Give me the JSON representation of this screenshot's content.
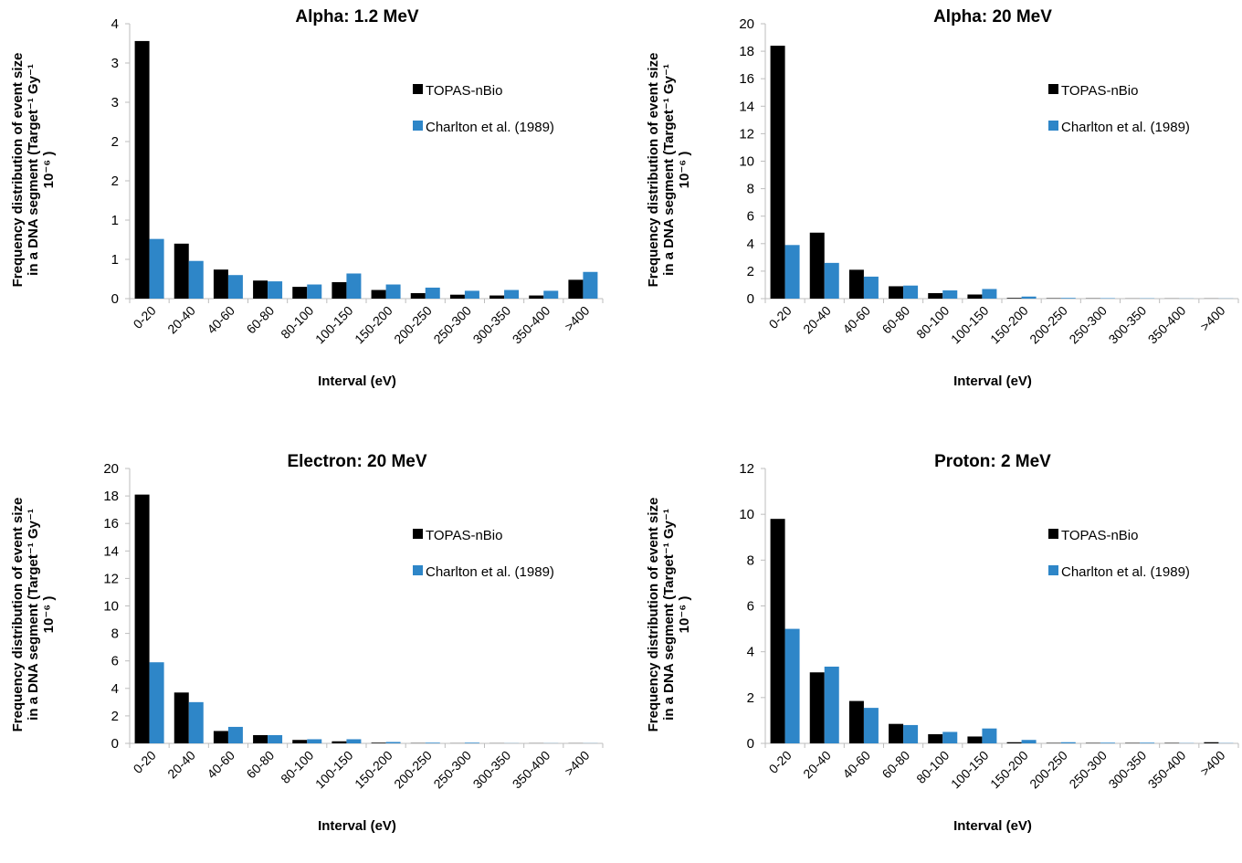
{
  "colors": {
    "topas": "#000000",
    "charlton": "#2e86c8",
    "axis": "#bdbdbd"
  },
  "ylabel_lines": [
    "Frequency distribution of event size",
    "in a DNA segment (Target⁻¹ Gy⁻¹",
    "10⁻⁶ )"
  ],
  "chart_data": [
    {
      "type": "bar",
      "title": "Alpha: 1.2 MeV",
      "xlabel": "Interval (eV)",
      "ylabel": "Frequency distribution of event size in a DNA segment (Target⁻¹ Gy⁻¹ 10⁻⁶ )",
      "categories": [
        "0-20",
        "20-40",
        "40-60",
        "60-80",
        "80-100",
        "100-150",
        "150-200",
        "200-250",
        "250-300",
        "300-350",
        "350-400",
        ">400"
      ],
      "ylim": [
        0,
        3.5
      ],
      "yticks": [
        0,
        0.5,
        1,
        1.5,
        2,
        2.5,
        3,
        3.5
      ],
      "ytick_labels": [
        "0",
        "1",
        "1",
        "2",
        "2",
        "3",
        "3",
        "4"
      ],
      "legend": "right",
      "series": [
        {
          "name": "TOPAS-nBio",
          "values": [
            3.28,
            0.7,
            0.37,
            0.23,
            0.15,
            0.21,
            0.11,
            0.07,
            0.05,
            0.04,
            0.04,
            0.24
          ]
        },
        {
          "name": "Charlton et al. (1989)",
          "values": [
            0.76,
            0.48,
            0.3,
            0.22,
            0.18,
            0.32,
            0.18,
            0.14,
            0.1,
            0.11,
            0.1,
            0.34
          ]
        }
      ]
    },
    {
      "type": "bar",
      "title": "Alpha: 20 MeV",
      "xlabel": "Interval (eV)",
      "ylabel": "Frequency distribution of event size in a DNA segment (Target⁻¹ Gy⁻¹ 10⁻⁶ )",
      "categories": [
        "0-20",
        "20-40",
        "40-60",
        "60-80",
        "80-100",
        "100-150",
        "150-200",
        "200-250",
        "250-300",
        "300-350",
        "350-400",
        ">400"
      ],
      "ylim": [
        0,
        20
      ],
      "yticks": [
        0,
        2,
        4,
        6,
        8,
        10,
        12,
        14,
        16,
        18,
        20
      ],
      "ytick_labels": [
        "0",
        "2",
        "4",
        "6",
        "8",
        "10",
        "12",
        "14",
        "16",
        "18",
        "20"
      ],
      "legend": "right",
      "series": [
        {
          "name": "TOPAS-nBio",
          "values": [
            18.4,
            4.8,
            2.1,
            0.9,
            0.4,
            0.3,
            0.05,
            0.03,
            0.02,
            0.01,
            0.01,
            0.01
          ]
        },
        {
          "name": "Charlton et al. (1989)",
          "values": [
            3.9,
            2.6,
            1.6,
            0.95,
            0.6,
            0.7,
            0.15,
            0.05,
            0.03,
            0.02,
            0.01,
            0.01
          ]
        }
      ]
    },
    {
      "type": "bar",
      "title": "Electron: 20 MeV",
      "xlabel": "Interval (eV)",
      "ylabel": "Frequency distribution of event size in a DNA segment (Target⁻¹ Gy⁻¹ 10⁻⁶ )",
      "categories": [
        "0-20",
        "20-40",
        "40-60",
        "60-80",
        "80-100",
        "100-150",
        "150-200",
        "200-250",
        "250-300",
        "300-350",
        "350-400",
        ">400"
      ],
      "ylim": [
        0,
        20
      ],
      "yticks": [
        0,
        2,
        4,
        6,
        8,
        10,
        12,
        14,
        16,
        18,
        20
      ],
      "ytick_labels": [
        "0",
        "2",
        "4",
        "6",
        "8",
        "10",
        "12",
        "14",
        "16",
        "18",
        "20"
      ],
      "legend": "right",
      "series": [
        {
          "name": "TOPAS-nBio",
          "values": [
            18.1,
            3.7,
            0.9,
            0.6,
            0.25,
            0.15,
            0.05,
            0.02,
            0.01,
            0.01,
            0.01,
            0.01
          ]
        },
        {
          "name": "Charlton et al. (1989)",
          "values": [
            5.9,
            3.0,
            1.2,
            0.6,
            0.3,
            0.3,
            0.1,
            0.05,
            0.05,
            0.01,
            0.01,
            0.01
          ]
        }
      ]
    },
    {
      "type": "bar",
      "title": "Proton: 2 MeV",
      "xlabel": "Interval (eV)",
      "ylabel": "Frequency distribution of event size in a DNA segment (Target⁻¹ Gy⁻¹ 10⁻⁶ )",
      "categories": [
        "0-20",
        "20-40",
        "40-60",
        "60-80",
        "80-100",
        "100-150",
        "150-200",
        "200-250",
        "250-300",
        "300-350",
        "350-400",
        ">400"
      ],
      "ylim": [
        0,
        12
      ],
      "yticks": [
        0,
        2,
        4,
        6,
        8,
        10,
        12
      ],
      "ytick_labels": [
        "0",
        "2",
        "4",
        "6",
        "8",
        "10",
        "12"
      ],
      "legend": "right",
      "series": [
        {
          "name": "TOPAS-nBio",
          "values": [
            9.8,
            3.1,
            1.85,
            0.85,
            0.4,
            0.3,
            0.05,
            0.02,
            0.02,
            0.02,
            0.02,
            0.05
          ]
        },
        {
          "name": "Charlton et al. (1989)",
          "values": [
            5.0,
            3.35,
            1.55,
            0.8,
            0.5,
            0.65,
            0.15,
            0.05,
            0.03,
            0.03,
            0.01,
            0.01
          ]
        }
      ]
    }
  ]
}
